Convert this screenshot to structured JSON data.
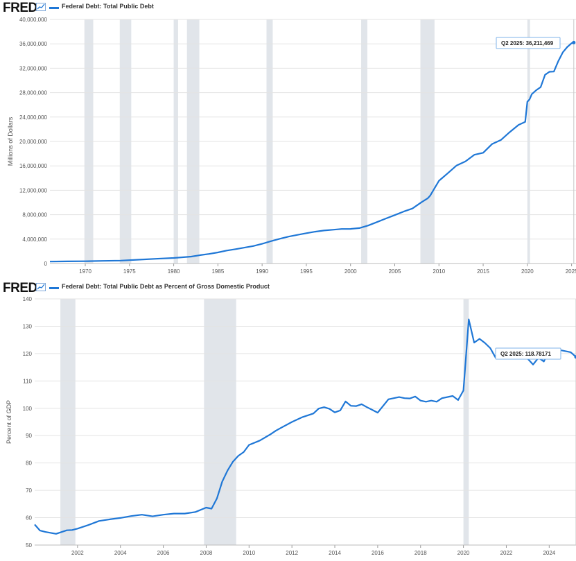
{
  "brand": {
    "logo_text": "FRED"
  },
  "chart_data": [
    {
      "type": "line",
      "title": "Federal Debt: Total Public Debt",
      "ylabel": "Millions of Dollars",
      "xlim": [
        1966,
        2025.5
      ],
      "ylim": [
        0,
        40000000
      ],
      "x_ticks": [
        "1970",
        "1975",
        "1980",
        "1985",
        "1990",
        "1995",
        "2000",
        "2005",
        "2010",
        "2015",
        "2020",
        "2025"
      ],
      "x_tick_values": [
        1970,
        1975,
        1980,
        1985,
        1990,
        1995,
        2000,
        2005,
        2010,
        2015,
        2020,
        2025
      ],
      "y_ticks": [
        "0",
        "4,000,000",
        "8,000,000",
        "12,000,000",
        "16,000,000",
        "20,000,000",
        "24,000,000",
        "28,000,000",
        "32,000,000",
        "36,000,000",
        "40,000,000"
      ],
      "y_tick_values": [
        0,
        4000000,
        8000000,
        12000000,
        16000000,
        20000000,
        24000000,
        28000000,
        32000000,
        36000000,
        40000000
      ],
      "recessions": [
        [
          1969.9,
          1970.9
        ],
        [
          1973.9,
          1975.2
        ],
        [
          1980.0,
          1980.5
        ],
        [
          1981.5,
          1982.9
        ],
        [
          1990.5,
          1991.2
        ],
        [
          2001.2,
          2001.9
        ],
        [
          2007.9,
          2009.5
        ],
        [
          2020.0,
          2020.3
        ]
      ],
      "series": [
        {
          "x": [
            1966,
            1968,
            1970,
            1972,
            1974,
            1976,
            1978,
            1980,
            1982,
            1983,
            1984,
            1985,
            1986,
            1987,
            1988,
            1989,
            1990,
            1991,
            1992,
            1993,
            1994,
            1995,
            1996,
            1997,
            1998,
            1999,
            2000,
            2001,
            2002,
            2003,
            2004,
            2005,
            2006,
            2007,
            2008,
            2008.75,
            2009,
            2010,
            2011,
            2012,
            2013,
            2014,
            2015,
            2016,
            2017,
            2018,
            2019,
            2019.75,
            2020,
            2020.25,
            2020.5,
            2021,
            2021.5,
            2022,
            2022.5,
            2023,
            2023.5,
            2024,
            2024.5,
            2025,
            2025.25
          ],
          "values": [
            320000,
            348000,
            370000,
            427000,
            475000,
            620000,
            770000,
            910000,
            1140000,
            1380000,
            1570000,
            1820000,
            2120000,
            2350000,
            2600000,
            2860000,
            3230000,
            3660000,
            4060000,
            4410000,
            4690000,
            4970000,
            5220000,
            5410000,
            5530000,
            5660000,
            5670000,
            5810000,
            6230000,
            6800000,
            7380000,
            7930000,
            8510000,
            9010000,
            10020000,
            10700000,
            11100000,
            13560000,
            14790000,
            16070000,
            16740000,
            17820000,
            18150000,
            19570000,
            20240000,
            21520000,
            22720000,
            23200000,
            26500000,
            26900000,
            27750000,
            28400000,
            28910000,
            30930000,
            31420000,
            31460000,
            33170000,
            34590000,
            35460000,
            36100000,
            36211469
          ]
        }
      ],
      "tooltip": {
        "label": "Q2 2025:",
        "value": "36,211,469"
      }
    },
    {
      "type": "line",
      "title": "Federal Debt: Total Public Debt as Percent of Gross Domestic Product",
      "ylabel": "Percent of GDP",
      "xlim": [
        2000,
        2025.25
      ],
      "ylim": [
        50,
        140
      ],
      "x_ticks": [
        "2002",
        "2004",
        "2006",
        "2008",
        "2010",
        "2012",
        "2014",
        "2016",
        "2018",
        "2020",
        "2022",
        "2024"
      ],
      "x_tick_values": [
        2002,
        2004,
        2006,
        2008,
        2010,
        2012,
        2014,
        2016,
        2018,
        2020,
        2022,
        2024
      ],
      "y_ticks": [
        "50",
        "60",
        "70",
        "80",
        "90",
        "100",
        "110",
        "120",
        "130",
        "140"
      ],
      "y_tick_values": [
        50,
        60,
        70,
        80,
        90,
        100,
        110,
        120,
        130,
        140
      ],
      "recessions": [
        [
          2001.2,
          2001.9
        ],
        [
          2007.9,
          2009.4
        ],
        [
          2020.0,
          2020.25
        ]
      ],
      "series": [
        {
          "x": [
            2000,
            2000.25,
            2000.5,
            2001,
            2001.5,
            2001.75,
            2002,
            2002.5,
            2003,
            2003.5,
            2004,
            2004.5,
            2005,
            2005.5,
            2006,
            2006.5,
            2007,
            2007.5,
            2008,
            2008.25,
            2008.5,
            2008.75,
            2009,
            2009.25,
            2009.5,
            2009.75,
            2010,
            2010.5,
            2011,
            2011.25,
            2011.5,
            2012,
            2012.5,
            2013,
            2013.25,
            2013.5,
            2013.75,
            2014,
            2014.25,
            2014.5,
            2014.75,
            2015,
            2015.25,
            2015.5,
            2015.75,
            2016,
            2016.5,
            2017,
            2017.25,
            2017.5,
            2017.75,
            2018,
            2018.25,
            2018.5,
            2018.75,
            2019,
            2019.5,
            2019.75,
            2020,
            2020.25,
            2020.5,
            2020.75,
            2021,
            2021.25,
            2021.5,
            2021.75,
            2022,
            2022.5,
            2023,
            2023.25,
            2023.5,
            2023.75,
            2024,
            2024.5,
            2025,
            2025.25
          ],
          "values": [
            57.5,
            55.3,
            54.8,
            54.1,
            55.4,
            55.5,
            56.0,
            57.3,
            58.8,
            59.4,
            59.9,
            60.6,
            61.1,
            60.5,
            61.1,
            61.5,
            61.5,
            62.1,
            63.7,
            63.3,
            67.0,
            73.2,
            77.3,
            80.5,
            82.6,
            84.0,
            86.6,
            88.2,
            90.5,
            91.8,
            92.9,
            95.0,
            96.8,
            98.1,
            99.9,
            100.4,
            99.8,
            98.5,
            99.2,
            102.5,
            100.9,
            100.8,
            101.5,
            100.4,
            99.4,
            98.4,
            103.3,
            104.1,
            103.7,
            103.6,
            104.3,
            102.8,
            102.4,
            102.8,
            102.4,
            103.7,
            104.5,
            103.0,
            106.5,
            132.5,
            124.0,
            125.4,
            123.9,
            122.0,
            118.5,
            119.8,
            120.4,
            118.6,
            118.1,
            116.0,
            118.5,
            117.1,
            121.0,
            121.3,
            120.5,
            118.78171
          ]
        }
      ],
      "tooltip": {
        "label": "Q2 2025:",
        "value": "118.78171"
      }
    }
  ]
}
